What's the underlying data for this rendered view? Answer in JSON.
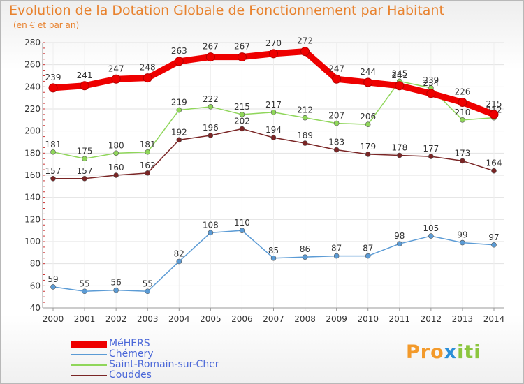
{
  "chart_data": {
    "type": "line",
    "title": "Evolution de la Dotation Globale de Fonctionnement par Habitant",
    "subtitle": "(en € et par an)",
    "xlabel": "",
    "ylabel": "",
    "categories": [
      "2000",
      "2001",
      "2002",
      "2003",
      "2004",
      "2005",
      "2006",
      "2007",
      "2008",
      "2009",
      "2010",
      "2011",
      "2012",
      "2013",
      "2014"
    ],
    "ylim": [
      40,
      280
    ],
    "yticks": [
      40,
      60,
      80,
      100,
      120,
      140,
      160,
      180,
      200,
      220,
      240,
      260,
      280
    ],
    "grid": true,
    "legend_position": "bottom-left",
    "series": [
      {
        "name": "MéHERS",
        "color": "#ee0000",
        "values": [
          239,
          241,
          247,
          248,
          263,
          267,
          267,
          270,
          272,
          247,
          244,
          241,
          234,
          226,
          215
        ]
      },
      {
        "name": "Chémery",
        "color": "#5b9bd5",
        "values": [
          59,
          55,
          56,
          55,
          82,
          108,
          110,
          85,
          86,
          87,
          87,
          98,
          105,
          99,
          97
        ]
      },
      {
        "name": "Saint-Romain-sur-Cher",
        "color": "#8fd65a",
        "values": [
          181,
          175,
          180,
          181,
          219,
          222,
          215,
          217,
          212,
          207,
          206,
          245,
          239,
          210,
          212
        ]
      },
      {
        "name": "Couddes",
        "color": "#7a2525",
        "values": [
          157,
          157,
          160,
          162,
          192,
          196,
          202,
          194,
          189,
          183,
          179,
          178,
          177,
          173,
          164
        ]
      }
    ]
  },
  "brand": {
    "p1": "Pro",
    "p2": "x",
    "p3": "iti"
  }
}
